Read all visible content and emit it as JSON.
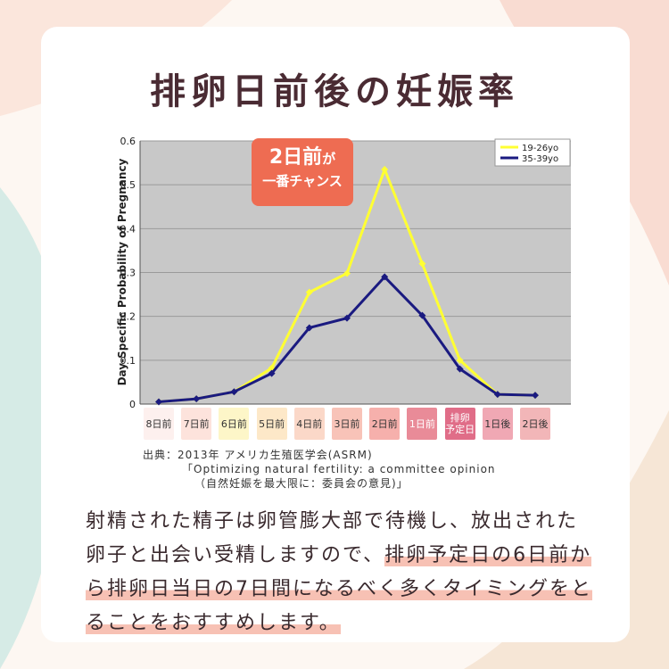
{
  "title": "排卵日前後の妊娠率",
  "callout": {
    "line1_main": "2日前",
    "line1_suffix": "が",
    "line2": "一番チャンス"
  },
  "source": {
    "line1": "出典：2013年 アメリカ生殖医学会(ASRM)",
    "line2": "「Optimizing natural fertility: a committee opinion",
    "line3": "（自然妊娠を最大限に：委員会の意見)」"
  },
  "body": {
    "part1": "射精された精子は卵管膨大部で待機し、放出された卵子と出会い受精しますので、",
    "highlight": "排卵予定日の6日前から排卵日当日の7日間になるべく多くタイミング",
    "part2": "をとることをおすすめします。"
  },
  "colors": {
    "series1": "#ffff33",
    "series2": "#1a1a80",
    "plot_bg": "#c8c8c8",
    "accent": "#ee6c52"
  },
  "chart_data": {
    "type": "line",
    "ylabel": "Day-Specific Probability of Pregnancy",
    "ylim": [
      0,
      0.6
    ],
    "yticks": [
      "0",
      "0.1",
      "0.2",
      "0.3",
      "0.4",
      "0.5",
      "0.6"
    ],
    "categories": [
      "8日前",
      "7日前",
      "6日前",
      "5日前",
      "4日前",
      "3日前",
      "2日前",
      "1日前",
      "排卵予定日",
      "1日後",
      "2日後"
    ],
    "category_colors": [
      "#fdf0ee",
      "#fde3dc",
      "#fdf6c8",
      "#fde8c8",
      "#fbd8c8",
      "#f8c3b8",
      "#f6b0ac",
      "#e98b98",
      "#e06d88",
      "#f0a8b4",
      "#f2b6b8"
    ],
    "legend_position": "top-right",
    "grid": true,
    "series": [
      {
        "name": "19-26yo",
        "values": [
          0.005,
          0.012,
          0.028,
          0.082,
          0.255,
          0.298,
          0.535,
          0.32,
          0.1,
          0.022,
          0.02
        ]
      },
      {
        "name": "35-39yo",
        "values": [
          0.005,
          0.012,
          0.028,
          0.07,
          0.174,
          0.196,
          0.29,
          0.202,
          0.08,
          0.022,
          0.02
        ]
      }
    ]
  }
}
